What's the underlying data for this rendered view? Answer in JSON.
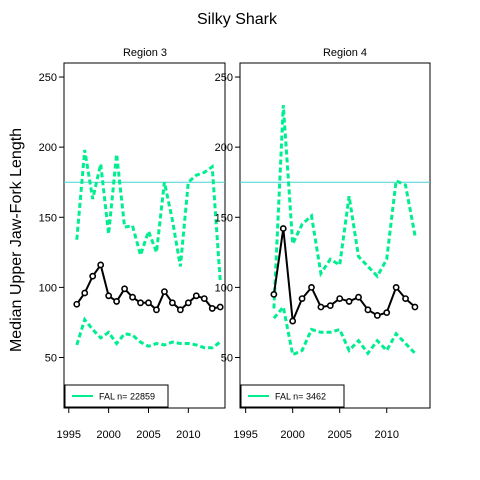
{
  "chart_data": {
    "type": "line",
    "title": "Silky Shark",
    "ylabel": "Median Upper Jaw-Fork Length",
    "xlabel": "",
    "xlim": [
      1994.4,
      2014.6
    ],
    "ylim": [
      14,
      260
    ],
    "xticks": [
      1995,
      2000,
      2005,
      2010
    ],
    "yticks": [
      50,
      100,
      150,
      200,
      250
    ],
    "reference_line": 175,
    "colors": {
      "median": "#000000",
      "bounds": "#00ee90",
      "reference": "#46d2d2"
    },
    "grid": false,
    "legend_position": "bottom-left",
    "panels": [
      {
        "title": "Region 3",
        "legend_label": "FAL n= 22859",
        "years": [
          1996,
          1997,
          1998,
          1999,
          2000,
          2001,
          2002,
          2003,
          2004,
          2005,
          2006,
          2007,
          2008,
          2009,
          2010,
          2011,
          2012,
          2013,
          2014
        ],
        "median": [
          88,
          96,
          108,
          116,
          94,
          90,
          99,
          93,
          89,
          89,
          84,
          97,
          89,
          84,
          89,
          94,
          92,
          85,
          86
        ],
        "upper": [
          134,
          198,
          163,
          188,
          138,
          195,
          143,
          144,
          123,
          140,
          125,
          175,
          148,
          115,
          175,
          180,
          182,
          186,
          105
        ],
        "lower": [
          59,
          77,
          70,
          64,
          68,
          60,
          67,
          66,
          61,
          58,
          60,
          59,
          61,
          60,
          60,
          59,
          57,
          57,
          61
        ]
      },
      {
        "title": "Region 4",
        "legend_label": "FAL n= 3462",
        "years": [
          1998,
          1999,
          2000,
          2001,
          2002,
          2003,
          2004,
          2005,
          2006,
          2007,
          2008,
          2009,
          2010,
          2011,
          2012,
          2013
        ],
        "median": [
          95,
          142,
          76,
          92,
          100,
          86,
          87,
          92,
          90,
          93,
          84,
          80,
          82,
          100,
          92,
          86
        ],
        "upper": [
          85,
          230,
          131,
          145,
          151,
          110,
          120,
          116,
          165,
          122,
          115,
          108,
          120,
          176,
          173,
          137
        ],
        "lower": [
          78,
          86,
          52,
          55,
          70,
          68,
          68,
          70,
          55,
          62,
          53,
          62,
          55,
          67,
          60,
          53
        ]
      }
    ]
  }
}
